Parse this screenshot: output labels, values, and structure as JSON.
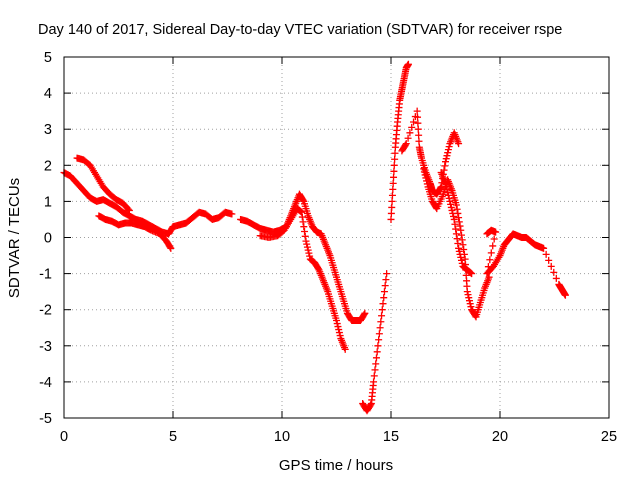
{
  "chart_data": {
    "type": "scatter",
    "title": "Day 140 of 2017, Sidereal Day-to-day VTEC variation (SDTVAR) for receiver rspe",
    "xlabel": "GPS time / hours",
    "ylabel": "SDTVAR / TECUs",
    "xlim": [
      0,
      25
    ],
    "ylim": [
      -5,
      5
    ],
    "grid": true,
    "marker": "+",
    "series_color": "#ff0000",
    "xticks": [
      0,
      5,
      10,
      15,
      20,
      25
    ],
    "xtick_labels": [
      "0",
      "5",
      "10",
      "15",
      "20",
      "25"
    ],
    "yticks": [
      -5,
      -4,
      -3,
      -2,
      -1,
      0,
      1,
      2,
      3,
      4,
      5
    ],
    "ytick_labels": [
      "-5",
      "-4",
      "-3",
      "-2",
      "-1",
      "0",
      "1",
      "2",
      "3",
      "4",
      "5"
    ],
    "series": [
      {
        "name": "SDTVAR",
        "points": [
          [
            0.0,
            1.8
          ],
          [
            0.3,
            1.7
          ],
          [
            0.6,
            1.5
          ],
          [
            0.9,
            1.3
          ],
          [
            1.2,
            1.1
          ],
          [
            1.5,
            1.0
          ],
          [
            1.8,
            1.05
          ],
          [
            2.1,
            0.95
          ],
          [
            2.4,
            0.85
          ],
          [
            2.7,
            0.7
          ],
          [
            3.0,
            0.6
          ],
          [
            3.3,
            0.5
          ],
          [
            3.6,
            0.45
          ],
          [
            3.9,
            0.35
          ],
          [
            4.2,
            0.25
          ],
          [
            4.5,
            0.15
          ],
          [
            4.8,
            0.1
          ],
          [
            5.0,
            0.3
          ],
          [
            5.3,
            0.35
          ],
          [
            5.6,
            0.4
          ],
          [
            5.9,
            0.55
          ],
          [
            6.2,
            0.7
          ],
          [
            6.5,
            0.65
          ],
          [
            6.8,
            0.5
          ],
          [
            7.1,
            0.55
          ],
          [
            7.4,
            0.7
          ],
          [
            7.7,
            0.65
          ],
          [
            0.6,
            2.2
          ],
          [
            0.9,
            2.15
          ],
          [
            1.2,
            2.0
          ],
          [
            1.5,
            1.7
          ],
          [
            1.8,
            1.4
          ],
          [
            2.1,
            1.2
          ],
          [
            2.4,
            1.05
          ],
          [
            2.7,
            0.95
          ],
          [
            3.0,
            0.75
          ],
          [
            1.6,
            0.6
          ],
          [
            1.9,
            0.5
          ],
          [
            2.2,
            0.45
          ],
          [
            2.5,
            0.35
          ],
          [
            2.8,
            0.4
          ],
          [
            3.1,
            0.4
          ],
          [
            3.4,
            0.35
          ],
          [
            3.7,
            0.3
          ],
          [
            4.0,
            0.2
          ],
          [
            4.4,
            0.1
          ],
          [
            4.7,
            -0.1
          ],
          [
            4.9,
            -0.3
          ],
          [
            8.1,
            0.5
          ],
          [
            8.4,
            0.45
          ],
          [
            8.7,
            0.35
          ],
          [
            9.0,
            0.25
          ],
          [
            9.3,
            0.2
          ],
          [
            9.6,
            0.15
          ],
          [
            9.9,
            0.2
          ],
          [
            10.2,
            0.3
          ],
          [
            10.4,
            0.6
          ],
          [
            10.6,
            0.9
          ],
          [
            10.8,
            1.2
          ],
          [
            11.0,
            1.0
          ],
          [
            11.2,
            0.6
          ],
          [
            11.4,
            0.3
          ],
          [
            11.6,
            0.15
          ],
          [
            11.8,
            0.1
          ],
          [
            12.0,
            -0.2
          ],
          [
            12.2,
            -0.5
          ],
          [
            12.4,
            -0.9
          ],
          [
            12.6,
            -1.3
          ],
          [
            12.8,
            -1.7
          ],
          [
            13.0,
            -2.1
          ],
          [
            13.2,
            -2.3
          ],
          [
            13.4,
            -2.3
          ],
          [
            13.6,
            -2.3
          ],
          [
            13.8,
            -2.1
          ],
          [
            9.0,
            0.05
          ],
          [
            9.4,
            0.0
          ],
          [
            9.8,
            0.05
          ],
          [
            10.1,
            0.2
          ],
          [
            10.4,
            0.5
          ],
          [
            10.7,
            0.8
          ],
          [
            10.9,
            0.7
          ],
          [
            11.1,
            -0.1
          ],
          [
            11.3,
            -0.6
          ],
          [
            11.5,
            -0.7
          ],
          [
            11.7,
            -0.9
          ],
          [
            11.9,
            -1.2
          ],
          [
            12.1,
            -1.5
          ],
          [
            12.3,
            -1.9
          ],
          [
            12.5,
            -2.3
          ],
          [
            12.7,
            -2.8
          ],
          [
            12.9,
            -3.1
          ],
          [
            13.7,
            -4.6
          ],
          [
            13.9,
            -4.8
          ],
          [
            14.1,
            -4.6
          ],
          [
            14.2,
            -4.0
          ],
          [
            14.4,
            -3.0
          ],
          [
            14.6,
            -2.0
          ],
          [
            14.8,
            -1.0
          ],
          [
            15.0,
            0.5
          ],
          [
            15.1,
            1.5
          ],
          [
            15.2,
            2.5
          ],
          [
            15.3,
            3.2
          ],
          [
            15.4,
            3.8
          ],
          [
            15.5,
            4.1
          ],
          [
            15.6,
            4.4
          ],
          [
            15.7,
            4.7
          ],
          [
            15.8,
            4.8
          ],
          [
            15.5,
            2.4
          ],
          [
            15.7,
            2.6
          ],
          [
            16.2,
            3.5
          ],
          [
            16.3,
            2.5
          ],
          [
            16.4,
            2.2
          ],
          [
            16.6,
            1.8
          ],
          [
            16.8,
            1.5
          ],
          [
            16.9,
            1.3
          ],
          [
            17.1,
            1.2
          ],
          [
            17.3,
            1.4
          ],
          [
            17.5,
            2.1
          ],
          [
            17.7,
            2.6
          ],
          [
            17.9,
            2.9
          ],
          [
            18.1,
            2.6
          ],
          [
            17.3,
            1.8
          ],
          [
            17.5,
            1.5
          ],
          [
            17.7,
            1.0
          ],
          [
            17.9,
            0.5
          ],
          [
            18.1,
            -0.3
          ],
          [
            18.3,
            -0.8
          ],
          [
            18.5,
            -0.9
          ],
          [
            18.7,
            -1.0
          ],
          [
            16.5,
            1.9
          ],
          [
            16.7,
            1.4
          ],
          [
            16.9,
            1.0
          ],
          [
            17.1,
            0.8
          ],
          [
            17.4,
            1.2
          ],
          [
            17.6,
            1.6
          ],
          [
            17.8,
            1.3
          ],
          [
            18.0,
            0.9
          ],
          [
            18.2,
            0.2
          ],
          [
            18.4,
            -0.6
          ],
          [
            18.5,
            -1.5
          ],
          [
            18.7,
            -2.0
          ],
          [
            18.9,
            -2.2
          ],
          [
            19.1,
            -1.8
          ],
          [
            19.3,
            -1.4
          ],
          [
            19.5,
            -1.1
          ],
          [
            19.4,
            0.1
          ],
          [
            19.6,
            0.2
          ],
          [
            19.8,
            0.15
          ],
          [
            19.4,
            -1.0
          ],
          [
            19.7,
            -0.8
          ],
          [
            20.0,
            -0.5
          ],
          [
            20.2,
            -0.2
          ],
          [
            20.4,
            -0.05
          ],
          [
            20.6,
            0.1
          ],
          [
            20.8,
            0.05
          ],
          [
            21.0,
            0.0
          ],
          [
            21.2,
            0.0
          ],
          [
            21.4,
            -0.1
          ],
          [
            21.6,
            -0.2
          ],
          [
            21.8,
            -0.25
          ],
          [
            22.0,
            -0.3
          ],
          [
            22.7,
            -1.3
          ],
          [
            22.8,
            -1.4
          ],
          [
            22.9,
            -1.5
          ],
          [
            23.0,
            -1.6
          ]
        ]
      }
    ]
  }
}
